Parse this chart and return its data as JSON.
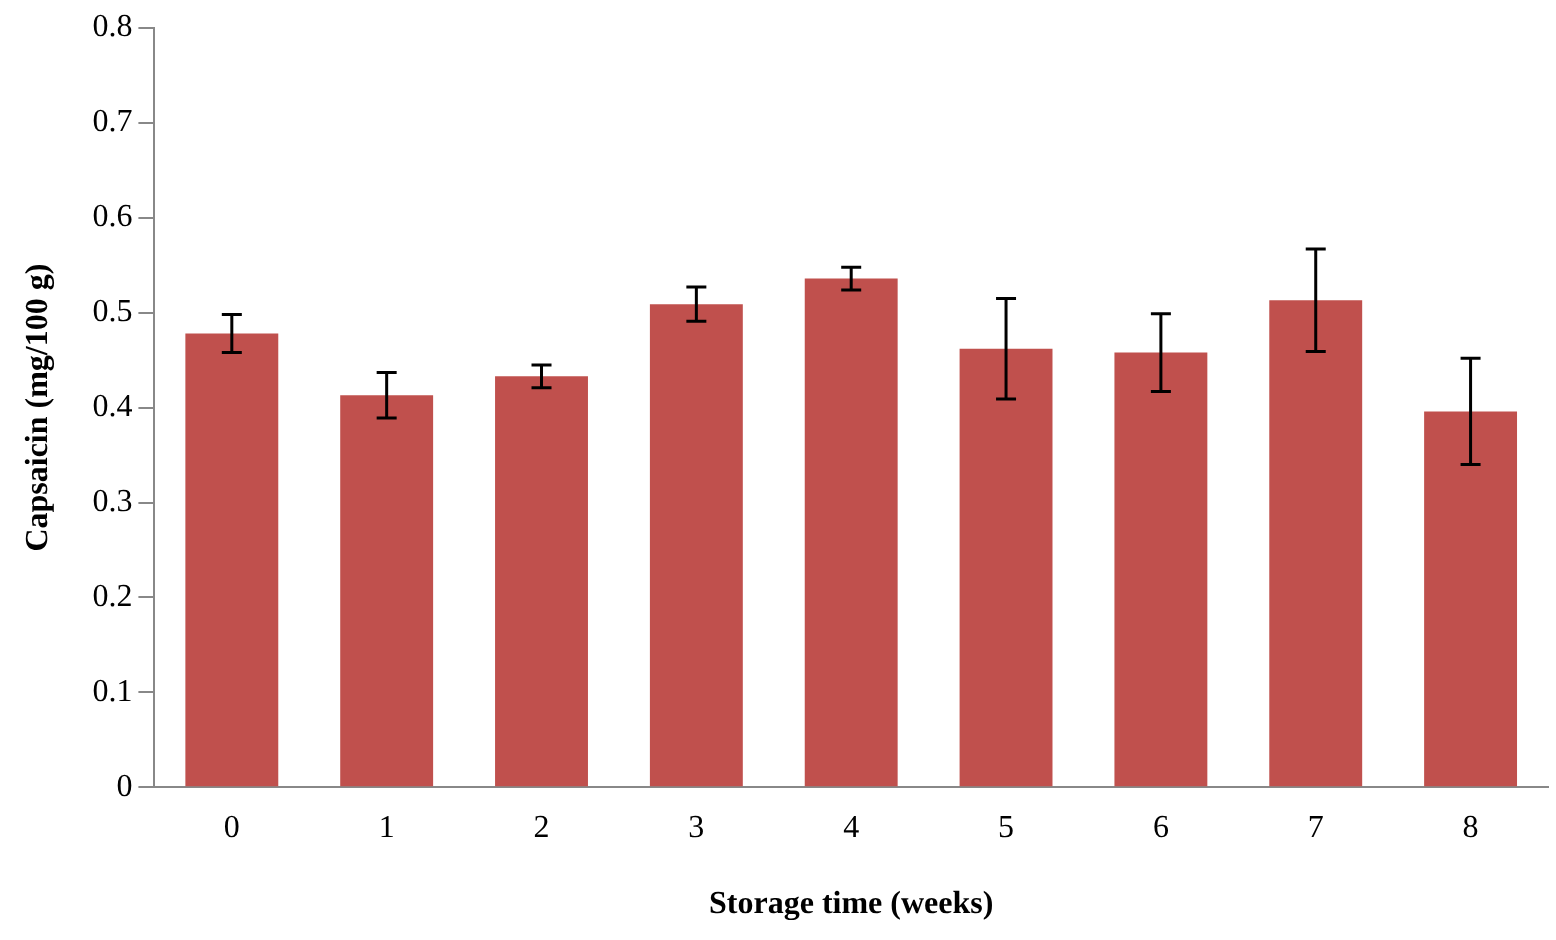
{
  "chart_data": {
    "type": "bar",
    "xlabel": "Storage time (weeks)",
    "ylabel": "Capsaicin (mg/100 g)",
    "categories": [
      "0",
      "1",
      "2",
      "3",
      "4",
      "5",
      "6",
      "7",
      "8"
    ],
    "values": [
      0.478,
      0.413,
      0.433,
      0.509,
      0.536,
      0.462,
      0.458,
      0.513,
      0.396
    ],
    "errors": [
      0.02,
      0.024,
      0.012,
      0.018,
      0.012,
      0.053,
      0.041,
      0.054,
      0.056
    ],
    "color": "#c0504d",
    "ylim": [
      0,
      0.8
    ],
    "yticks": [
      {
        "value": 0,
        "label": "0"
      },
      0.1,
      0.2,
      0.3,
      0.4,
      0.5,
      0.6,
      0.7,
      0.8
    ],
    "grid": false,
    "legend": false
  }
}
